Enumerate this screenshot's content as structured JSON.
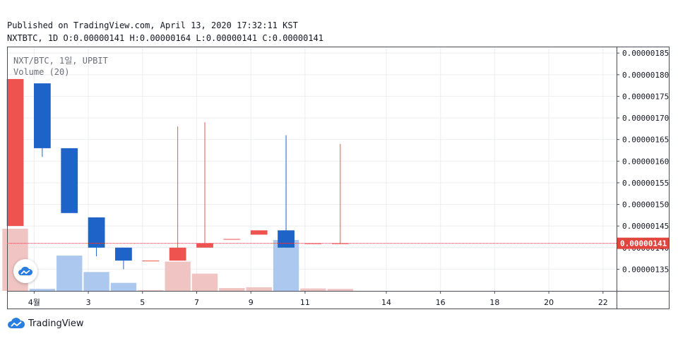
{
  "header": {
    "published": "Published on TradingView.com, April 13, 2020 17:32:11 KST",
    "ticker": "NXTBTC,",
    "interval": "1D",
    "open": "O:0.00000141",
    "high": "H:0.00000164",
    "low": "L:0.00000141",
    "close": "C:0.00000141"
  },
  "legend": {
    "symbol": "NXT/BTC, 1일, UPBIT",
    "volume": "Volume (20)"
  },
  "brand": {
    "name": "TradingView"
  },
  "colors": {
    "up": "#ef5350",
    "down": "#1e63c8",
    "vol_up": "#efc4c2",
    "vol_down": "#adc8ee",
    "last_price": "#e0463d",
    "grid": "#eceef2"
  },
  "chart_data": {
    "type": "candlestick",
    "y_ticks": [
      "0.00000135",
      "0.00000140",
      "0.00000145",
      "0.00000150",
      "0.00000155",
      "0.00000160",
      "0.00000165",
      "0.00000170",
      "0.00000175",
      "0.00000180",
      "0.00000185"
    ],
    "y_tick_values": [
      1.35,
      1.4,
      1.45,
      1.5,
      1.55,
      1.6,
      1.65,
      1.7,
      1.75,
      1.8,
      1.85
    ],
    "x_ticks": [
      {
        "label": "4월",
        "pos": 0.7
      },
      {
        "label": "3",
        "pos": 2.7
      },
      {
        "label": "5",
        "pos": 4.7
      },
      {
        "label": "7",
        "pos": 6.7
      },
      {
        "label": "9",
        "pos": 8.7
      },
      {
        "label": "11",
        "pos": 10.7
      },
      {
        "label": "14",
        "pos": 13.7
      },
      {
        "label": "16",
        "pos": 15.7
      },
      {
        "label": "18",
        "pos": 17.7
      },
      {
        "label": "20",
        "pos": 19.7
      },
      {
        "label": "22",
        "pos": 21.7
      }
    ],
    "ylim": [
      1.3,
      1.865
    ],
    "xlim": [
      -0.3,
      22.2
    ],
    "unit_multiplier": "1e-6",
    "last_price_label": "0.00000141",
    "last_price": 1.41,
    "candles": [
      {
        "x": 0,
        "open": 1.45,
        "high": 1.79,
        "low": 1.45,
        "close": 1.79,
        "volume": 15.5
      },
      {
        "x": 1,
        "open": 1.78,
        "high": 1.78,
        "low": 1.61,
        "close": 1.63,
        "volume": 0.5
      },
      {
        "x": 2,
        "open": 1.63,
        "high": 1.63,
        "low": 1.48,
        "close": 1.48,
        "volume": 8.8
      },
      {
        "x": 3,
        "open": 1.47,
        "high": 1.47,
        "low": 1.38,
        "close": 1.4,
        "volume": 4.7
      },
      {
        "x": 4,
        "open": 1.4,
        "high": 1.4,
        "low": 1.35,
        "close": 1.37,
        "volume": 2.0
      },
      {
        "x": 5,
        "open": 1.37,
        "high": 1.37,
        "low": 1.37,
        "close": 1.37,
        "volume": 0.2
      },
      {
        "x": 6,
        "open": 1.37,
        "high": 1.68,
        "low": 1.37,
        "close": 1.4,
        "volume": 7.3
      },
      {
        "x": 7,
        "open": 1.4,
        "high": 1.69,
        "low": 1.4,
        "close": 1.41,
        "volume": 4.3
      },
      {
        "x": 8,
        "open": 1.42,
        "high": 1.42,
        "low": 1.42,
        "close": 1.42,
        "volume": 0.7
      },
      {
        "x": 9,
        "open": 1.43,
        "high": 1.44,
        "low": 1.43,
        "close": 1.44,
        "volume": 0.9
      },
      {
        "x": 10,
        "open": 1.44,
        "high": 1.66,
        "low": 1.4,
        "close": 1.4,
        "volume": 12.7
      },
      {
        "x": 11,
        "open": 1.41,
        "high": 1.41,
        "low": 1.41,
        "close": 1.41,
        "volume": 0.6
      },
      {
        "x": 12,
        "open": 1.41,
        "high": 1.64,
        "low": 1.41,
        "close": 1.41,
        "volume": 0.5
      }
    ]
  }
}
